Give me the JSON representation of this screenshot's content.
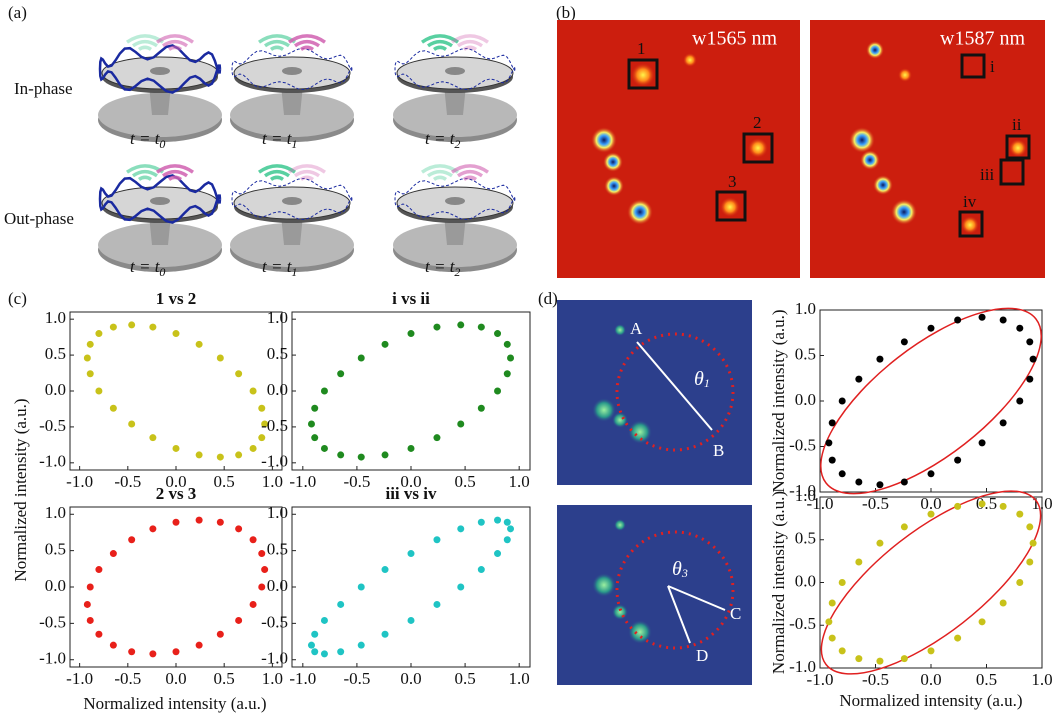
{
  "panel_labels": [
    "(a)",
    "(b)",
    "(c)",
    "(d)"
  ],
  "panel_a": {
    "rows": [
      "In-phase",
      "Out-phase"
    ],
    "times": [
      {
        "text": "t = t",
        "sub": "0"
      },
      {
        "text": "t = t",
        "sub": "1"
      },
      {
        "text": "t = t",
        "sub": "2"
      }
    ]
  },
  "panel_b": {
    "images": [
      {
        "label": "w1565 nm",
        "boxes": [
          "1",
          "2",
          "3"
        ]
      },
      {
        "label": "w1587 nm",
        "boxes": [
          "i",
          "ii",
          "iii",
          "iv"
        ]
      }
    ]
  },
  "panel_c": {
    "x_label": "Normalized intensity (a.u.)",
    "y_label": "Normalized intensity (a.u.)"
  },
  "panel_d": {
    "images": [
      {
        "points": [
          "A",
          "B"
        ],
        "angle": {
          "text": "θ",
          "sub": "1"
        }
      },
      {
        "points": [
          "C",
          "D"
        ],
        "angle": {
          "text": "θ",
          "sub": "3"
        }
      }
    ]
  },
  "chart_data": [
    {
      "type": "scatter",
      "title": "1 vs 2",
      "color": "#c8c21a",
      "x": [
        0.92,
        0.89,
        0.8,
        0.65,
        0.46,
        0.24,
        0,
        -0.24,
        -0.46,
        -0.65,
        -0.8,
        -0.89,
        -0.92,
        -0.89,
        -0.8,
        -0.65,
        -0.46,
        -0.24,
        0,
        0.24,
        0.46,
        0.65,
        0.8,
        0.89
      ],
      "values": [
        -0.46,
        -0.65,
        -0.8,
        -0.89,
        -0.92,
        -0.89,
        -0.8,
        -0.65,
        -0.46,
        -0.24,
        0,
        0.24,
        0.46,
        0.65,
        0.8,
        0.89,
        0.92,
        0.89,
        0.8,
        0.65,
        0.46,
        0.24,
        0,
        -0.24
      ],
      "xlim": [
        -1.1,
        1.1
      ],
      "ylim": [
        -1.1,
        1.1
      ],
      "xticks": [
        {
          "value": -1,
          "label": "-1.0"
        },
        {
          "value": -0.5,
          "label": "-0.5"
        },
        {
          "value": 0,
          "label": "0.0"
        },
        {
          "value": 0.5,
          "label": "0.5"
        },
        {
          "value": 1,
          "label": "1.0"
        }
      ],
      "yticks": [
        {
          "value": -1,
          "label": "-1.0"
        },
        {
          "value": -0.5,
          "label": "-0.5"
        },
        {
          "value": 0,
          "label": "0.0"
        },
        {
          "value": 0.5,
          "label": "0.5"
        },
        {
          "value": 1,
          "label": "1.0"
        }
      ]
    },
    {
      "type": "scatter",
      "title": "i vs ii",
      "color": "#1f8a1f",
      "x": [
        0.92,
        0.89,
        0.8,
        0.65,
        0.46,
        0.24,
        0,
        -0.24,
        -0.46,
        -0.65,
        -0.8,
        -0.89,
        -0.92,
        -0.89,
        -0.8,
        -0.65,
        -0.46,
        -0.24,
        0,
        0.24,
        0.46,
        0.65,
        0.8,
        0.89
      ],
      "values": [
        0.46,
        0.24,
        0,
        -0.24,
        -0.46,
        -0.65,
        -0.8,
        -0.89,
        -0.92,
        -0.89,
        -0.8,
        -0.65,
        -0.46,
        -0.24,
        0,
        0.24,
        0.46,
        0.65,
        0.8,
        0.89,
        0.92,
        0.89,
        0.8,
        0.65
      ],
      "xlim": [
        -1.1,
        1.1
      ],
      "ylim": [
        -1.1,
        1.1
      ],
      "xticks": [
        {
          "value": -1,
          "label": "-1.0"
        },
        {
          "value": -0.5,
          "label": "-0.5"
        },
        {
          "value": 0,
          "label": "0.0"
        },
        {
          "value": 0.5,
          "label": "0.5"
        },
        {
          "value": 1,
          "label": "1.0"
        }
      ],
      "yticks": [
        {
          "value": -1,
          "label": "-1.0"
        },
        {
          "value": -0.5,
          "label": "-0.5"
        },
        {
          "value": 0,
          "label": "0.0"
        },
        {
          "value": 0.5,
          "label": "0.5"
        },
        {
          "value": 1,
          "label": "1.0"
        }
      ]
    },
    {
      "type": "scatter",
      "title": "2 vs 3",
      "color": "#e8201a",
      "x": [
        0.92,
        0.89,
        0.8,
        0.65,
        0.46,
        0.24,
        0,
        -0.24,
        -0.46,
        -0.65,
        -0.8,
        -0.89,
        -0.92,
        -0.89,
        -0.8,
        -0.65,
        -0.46,
        -0.24,
        0,
        0.24,
        0.46,
        0.65,
        0.8,
        0.89
      ],
      "values": [
        0.24,
        0,
        -0.24,
        -0.46,
        -0.65,
        -0.8,
        -0.89,
        -0.92,
        -0.89,
        -0.8,
        -0.65,
        -0.46,
        -0.24,
        0,
        0.24,
        0.46,
        0.65,
        0.8,
        0.89,
        0.92,
        0.89,
        0.8,
        0.65,
        0.46
      ],
      "xlim": [
        -1.1,
        1.1
      ],
      "ylim": [
        -1.1,
        1.1
      ],
      "xticks": [
        {
          "value": -1,
          "label": "-1.0"
        },
        {
          "value": -0.5,
          "label": "-0.5"
        },
        {
          "value": 0,
          "label": "0.0"
        },
        {
          "value": 0.5,
          "label": "0.5"
        },
        {
          "value": 1,
          "label": "1.0"
        }
      ],
      "yticks": [
        {
          "value": -1,
          "label": "-1.0"
        },
        {
          "value": -0.5,
          "label": "-0.5"
        },
        {
          "value": 0,
          "label": "0.0"
        },
        {
          "value": 0.5,
          "label": "0.5"
        },
        {
          "value": 1,
          "label": "1.0"
        }
      ]
    },
    {
      "type": "scatter",
      "title": "iii vs iv",
      "color": "#1fc4c4",
      "x": [
        0.92,
        0.89,
        0.8,
        0.65,
        0.46,
        0.24,
        0,
        -0.24,
        -0.46,
        -0.65,
        -0.8,
        -0.89,
        -0.92,
        -0.89,
        -0.8,
        -0.65,
        -0.46,
        -0.24,
        0,
        0.24,
        0.46,
        0.65,
        0.8,
        0.89
      ],
      "values": [
        0.8,
        0.65,
        0.46,
        0.24,
        0,
        -0.24,
        -0.46,
        -0.65,
        -0.8,
        -0.89,
        -0.92,
        -0.89,
        -0.8,
        -0.65,
        -0.46,
        -0.24,
        0,
        0.24,
        0.46,
        0.65,
        0.8,
        0.89,
        0.92,
        0.89
      ],
      "xlim": [
        -1.1,
        1.1
      ],
      "ylim": [
        -1.1,
        1.1
      ],
      "xticks": [
        {
          "value": -1,
          "label": "-1.0"
        },
        {
          "value": -0.5,
          "label": "-0.5"
        },
        {
          "value": 0,
          "label": "0.0"
        },
        {
          "value": 0.5,
          "label": "0.5"
        },
        {
          "value": 1,
          "label": "1.0"
        }
      ],
      "yticks": [
        {
          "value": -1,
          "label": "-1.0"
        },
        {
          "value": -0.5,
          "label": "-0.5"
        },
        {
          "value": 0,
          "label": "0.0"
        },
        {
          "value": 0.5,
          "label": "0.5"
        },
        {
          "value": 1,
          "label": "1.0"
        }
      ]
    },
    {
      "type": "scatter",
      "y_label": "Normalized intensity (a.u.)",
      "color": "#000000",
      "x": [
        0.92,
        0.89,
        0.8,
        0.65,
        0.46,
        0.24,
        0,
        -0.24,
        -0.46,
        -0.65,
        -0.8,
        -0.89,
        -0.92,
        -0.89,
        -0.8,
        -0.65,
        -0.46,
        -0.24,
        0,
        0.24,
        0.46,
        0.65,
        0.8,
        0.89
      ],
      "values": [
        0.46,
        0.24,
        0,
        -0.24,
        -0.46,
        -0.65,
        -0.8,
        -0.89,
        -0.92,
        -0.89,
        -0.8,
        -0.65,
        -0.46,
        -0.24,
        0,
        0.24,
        0.46,
        0.65,
        0.8,
        0.89,
        0.92,
        0.89,
        0.8,
        0.65
      ],
      "xlim": [
        -1,
        1
      ],
      "ylim": [
        -1,
        1
      ],
      "xticks": [
        {
          "value": -1,
          "label": "-1.0"
        },
        {
          "value": -0.5,
          "label": "-0.5"
        },
        {
          "value": 0,
          "label": "0.0"
        },
        {
          "value": 0.5,
          "label": "0.5"
        },
        {
          "value": 1,
          "label": "1.0"
        }
      ],
      "yticks": [
        {
          "value": -1,
          "label": "-1.0"
        },
        {
          "value": -0.5,
          "label": "-0.5"
        },
        {
          "value": 0,
          "label": "0.0"
        },
        {
          "value": 0.5,
          "label": "0.5"
        },
        {
          "value": 1,
          "label": "1.0"
        }
      ]
    },
    {
      "type": "scatter",
      "x_label": "Normalized intensity (a.u.)",
      "y_label": "Normalized intensity (a.u.)",
      "color": "#c8c21a",
      "x": [
        0.92,
        0.89,
        0.8,
        0.65,
        0.46,
        0.24,
        0,
        -0.24,
        -0.46,
        -0.65,
        -0.8,
        -0.89,
        -0.92,
        -0.89,
        -0.8,
        -0.65,
        -0.46,
        -0.24,
        0,
        0.24,
        0.46,
        0.65,
        0.8,
        0.89
      ],
      "values": [
        0.46,
        0.24,
        0,
        -0.24,
        -0.46,
        -0.65,
        -0.8,
        -0.89,
        -0.92,
        -0.89,
        -0.8,
        -0.65,
        -0.46,
        -0.24,
        0,
        0.24,
        0.46,
        0.65,
        0.8,
        0.89,
        0.92,
        0.89,
        0.8,
        0.65
      ],
      "xlim": [
        -1,
        1
      ],
      "ylim": [
        -1,
        1
      ],
      "xticks": [
        {
          "value": -1,
          "label": "-1.0"
        },
        {
          "value": -0.5,
          "label": "-0.5"
        },
        {
          "value": 0,
          "label": "0.0"
        },
        {
          "value": 0.5,
          "label": "0.5"
        },
        {
          "value": 1,
          "label": "1.0"
        }
      ],
      "yticks": [
        {
          "value": -1,
          "label": "-1.0"
        },
        {
          "value": -0.5,
          "label": "-0.5"
        },
        {
          "value": 0,
          "label": "0.0"
        },
        {
          "value": 0.5,
          "label": "0.5"
        },
        {
          "value": 1,
          "label": "1.0"
        }
      ]
    }
  ]
}
